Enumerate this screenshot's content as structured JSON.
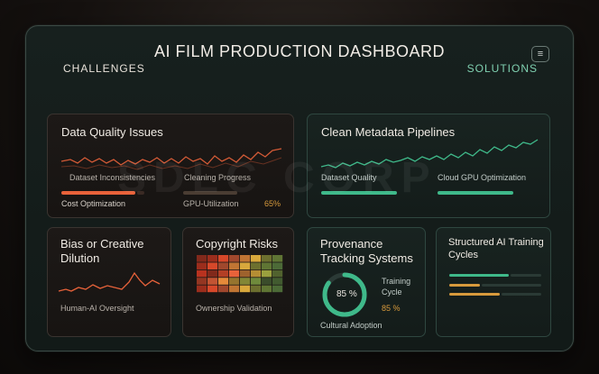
{
  "header": {
    "title": "AI FILM PRODUCTION DASHBOARD",
    "menu_icon": "menu-icon"
  },
  "sections": {
    "challenges": "CHALLENGES",
    "solutions": "SOLUTIONS"
  },
  "cards": {
    "data_quality": {
      "title": "Data Quality Issues",
      "label_inconsistencies": "Dataset Inconsistencies",
      "label_cleaning": "Cleaning Progress",
      "label_cost": "Cost Optimization",
      "label_gpu": "GPU-Utilization",
      "gpu_value": "65%"
    },
    "metadata": {
      "title": "Clean Metadata Pipelines",
      "label_quality": "Dataset Quality",
      "label_gpu": "Cloud GPU Optimization"
    },
    "bias": {
      "title": "Bias or Creative Dilution",
      "label": "Human-AI Oversight"
    },
    "copyright": {
      "title": "Copyright Risks",
      "label": "Ownership Validation"
    },
    "provenance": {
      "title": "Provenance Tracking Systems",
      "ring_value": "85 %",
      "training_label": "Training Cycle",
      "training_value": "85 %",
      "adoption_label": "Cultural Adoption",
      "progress": 0.85
    },
    "training": {
      "title": "Structured AI Training Cycles"
    }
  },
  "watermark": "SDLC CORP",
  "colors": {
    "accent_orange": "#e8623a",
    "accent_green": "#3fb98a",
    "amber": "#d89a3c"
  }
}
